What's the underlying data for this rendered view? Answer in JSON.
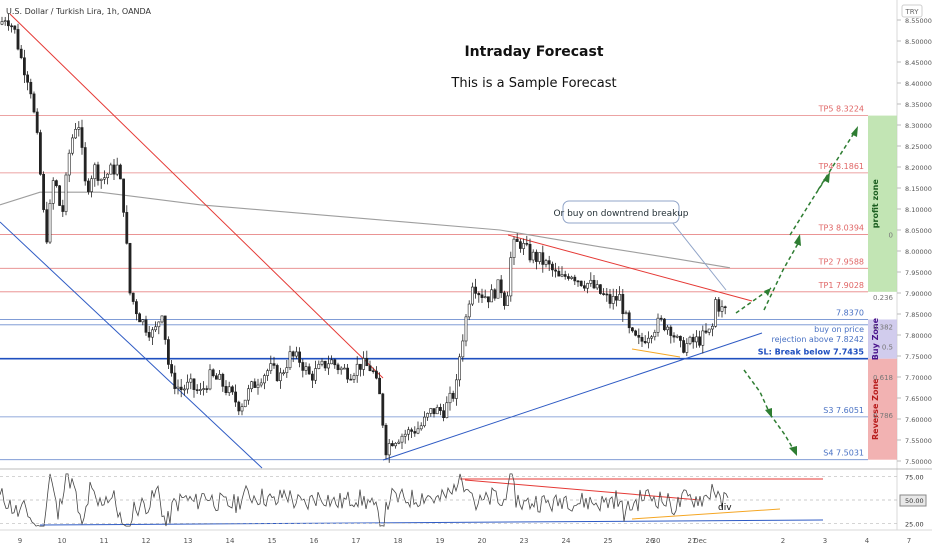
{
  "header": {
    "symbol": "U.S. Dollar / Turkish Lira, 1h, OANDA",
    "currency_badge": "TRY"
  },
  "title": "Intraday Forecast",
  "subtitle": "This is a Sample Forecast",
  "chart_data": [
    {
      "type": "candlestick",
      "title": "Intraday Forecast",
      "subtitle": "This is a Sample Forecast",
      "ylim": [
        7.48,
        8.59
      ],
      "y_ticks": [
        "8.55000",
        "8.50000",
        "8.45000",
        "8.40000",
        "8.35000",
        "8.30000",
        "8.25000",
        "8.20000",
        "8.15000",
        "8.10000",
        "8.05000",
        "8.00000",
        "7.95000",
        "7.90000",
        "7.85000",
        "7.80000",
        "7.75000",
        "7.70000",
        "7.65000",
        "7.60000",
        "7.55000",
        "7.50000"
      ],
      "x_ticks": [
        "9",
        "10",
        "11",
        "12",
        "13",
        "14",
        "15",
        "16",
        "17",
        "18",
        "19",
        "20",
        "23",
        "24",
        "25",
        "26",
        "27",
        "30",
        "Dec",
        "2",
        "3",
        "4",
        "7"
      ],
      "price_path": [
        [
          0,
          8.54
        ],
        [
          6,
          8.56
        ],
        [
          14,
          8.53
        ],
        [
          22,
          8.45
        ],
        [
          30,
          8.4
        ],
        [
          38,
          8.25
        ],
        [
          46,
          8.02
        ],
        [
          54,
          8.18
        ],
        [
          62,
          8.08
        ],
        [
          70,
          8.25
        ],
        [
          78,
          8.32
        ],
        [
          86,
          8.14
        ],
        [
          94,
          8.2
        ],
        [
          102,
          8.17
        ],
        [
          110,
          8.19
        ],
        [
          118,
          8.2
        ],
        [
          124,
          8.1
        ],
        [
          130,
          7.9
        ],
        [
          138,
          7.85
        ],
        [
          146,
          7.82
        ],
        [
          154,
          7.8
        ],
        [
          162,
          7.86
        ],
        [
          170,
          7.7
        ],
        [
          180,
          7.67
        ],
        [
          190,
          7.68
        ],
        [
          200,
          7.66
        ],
        [
          210,
          7.7
        ],
        [
          220,
          7.69
        ],
        [
          230,
          7.66
        ],
        [
          240,
          7.63
        ],
        [
          250,
          7.67
        ],
        [
          260,
          7.7
        ],
        [
          270,
          7.72
        ],
        [
          280,
          7.7
        ],
        [
          290,
          7.75
        ],
        [
          300,
          7.74
        ],
        [
          310,
          7.7
        ],
        [
          320,
          7.72
        ],
        [
          330,
          7.74
        ],
        [
          340,
          7.72
        ],
        [
          350,
          7.71
        ],
        [
          360,
          7.73
        ],
        [
          372,
          7.72
        ],
        [
          380,
          7.65
        ],
        [
          386,
          7.53
        ],
        [
          392,
          7.55
        ],
        [
          400,
          7.56
        ],
        [
          410,
          7.57
        ],
        [
          420,
          7.58
        ],
        [
          432,
          7.62
        ],
        [
          444,
          7.62
        ],
        [
          456,
          7.67
        ],
        [
          460,
          7.76
        ],
        [
          466,
          7.84
        ],
        [
          472,
          7.93
        ],
        [
          480,
          7.9
        ],
        [
          490,
          7.89
        ],
        [
          500,
          7.92
        ],
        [
          506,
          7.87
        ],
        [
          512,
          8.01
        ],
        [
          520,
          8.02
        ],
        [
          530,
          7.99
        ],
        [
          540,
          7.98
        ],
        [
          550,
          7.96
        ],
        [
          560,
          7.93
        ],
        [
          570,
          7.95
        ],
        [
          580,
          7.93
        ],
        [
          590,
          7.92
        ],
        [
          600,
          7.9
        ],
        [
          610,
          7.88
        ],
        [
          620,
          7.89
        ],
        [
          630,
          7.8
        ],
        [
          640,
          7.78
        ],
        [
          650,
          7.81
        ],
        [
          660,
          7.83
        ],
        [
          670,
          7.82
        ],
        [
          680,
          7.77
        ],
        [
          690,
          7.78
        ],
        [
          700,
          7.79
        ],
        [
          706,
          7.8
        ],
        [
          712,
          7.81
        ],
        [
          716,
          7.89
        ],
        [
          720,
          7.86
        ],
        [
          728,
          7.86
        ]
      ],
      "moving_average_path": [
        [
          0,
          8.11
        ],
        [
          40,
          8.14
        ],
        [
          100,
          8.14
        ],
        [
          200,
          8.11
        ],
        [
          300,
          8.09
        ],
        [
          400,
          8.07
        ],
        [
          500,
          8.05
        ],
        [
          600,
          8.01
        ],
        [
          680,
          7.98
        ],
        [
          730,
          7.96
        ]
      ],
      "levels": [
        {
          "name": "TP5",
          "value": 8.3224,
          "label": "TP5 8.3224",
          "color": "#e06666"
        },
        {
          "name": "TP4",
          "value": 8.1861,
          "label": "TP4 8.1861",
          "color": "#e06666"
        },
        {
          "name": "TP3",
          "value": 8.0394,
          "label": "TP3 8.0394",
          "color": "#e06666"
        },
        {
          "name": "TP2",
          "value": 7.9588,
          "label": "TP2 7.9588",
          "color": "#e06666"
        },
        {
          "name": "TP1",
          "value": 7.9028,
          "label": "TP1 7.9028",
          "color": "#e06666"
        },
        {
          "name": "Entry",
          "value": 7.837,
          "label": "7.8370",
          "color": "#4a72c4"
        },
        {
          "name": "Buy on price",
          "value": 7.8242,
          "label": "buy on price",
          "label2": "rejection above 7.8242",
          "color": "#4a72c4"
        },
        {
          "name": "SL",
          "value": 7.7435,
          "label": "SL: Break below 7.7435",
          "color": "#1f4fbf"
        },
        {
          "name": "S3",
          "value": 7.6051,
          "label": "S3 7.6051",
          "color": "#4a72c4"
        },
        {
          "name": "S4",
          "value": 7.5031,
          "label": "S4 7.5031",
          "color": "#4a72c4"
        }
      ],
      "fib_labels": [
        {
          "label": "0",
          "value": 8.0394
        },
        {
          "label": "0.236",
          "value": 7.89
        },
        {
          "label": "0.382",
          "value": 7.82
        },
        {
          "label": "0.5",
          "value": 7.773
        },
        {
          "label": "0.618",
          "value": 7.7
        },
        {
          "label": "0.786",
          "value": 7.61
        }
      ],
      "zones": [
        {
          "label": "profit zone",
          "from": 7.9028,
          "to": 8.3224,
          "color": "#b7e1a7"
        },
        {
          "label": "Buy Zone",
          "from": 7.7435,
          "to": 7.837,
          "color": "#c9c3ea"
        },
        {
          "label": "Reverse Zone",
          "from": 7.5031,
          "to": 7.7435,
          "color": "#f0a4a4"
        }
      ],
      "annotations": [
        {
          "text": "Or buy on downtrend breakup"
        }
      ]
    },
    {
      "type": "line",
      "name": "oscillator",
      "ylim": [
        20,
        80
      ],
      "y_ticks": [
        "75.00",
        "50.00",
        "25.00"
      ],
      "levels": [
        75,
        50,
        25
      ],
      "annotations": [
        {
          "text": "div"
        }
      ]
    }
  ]
}
